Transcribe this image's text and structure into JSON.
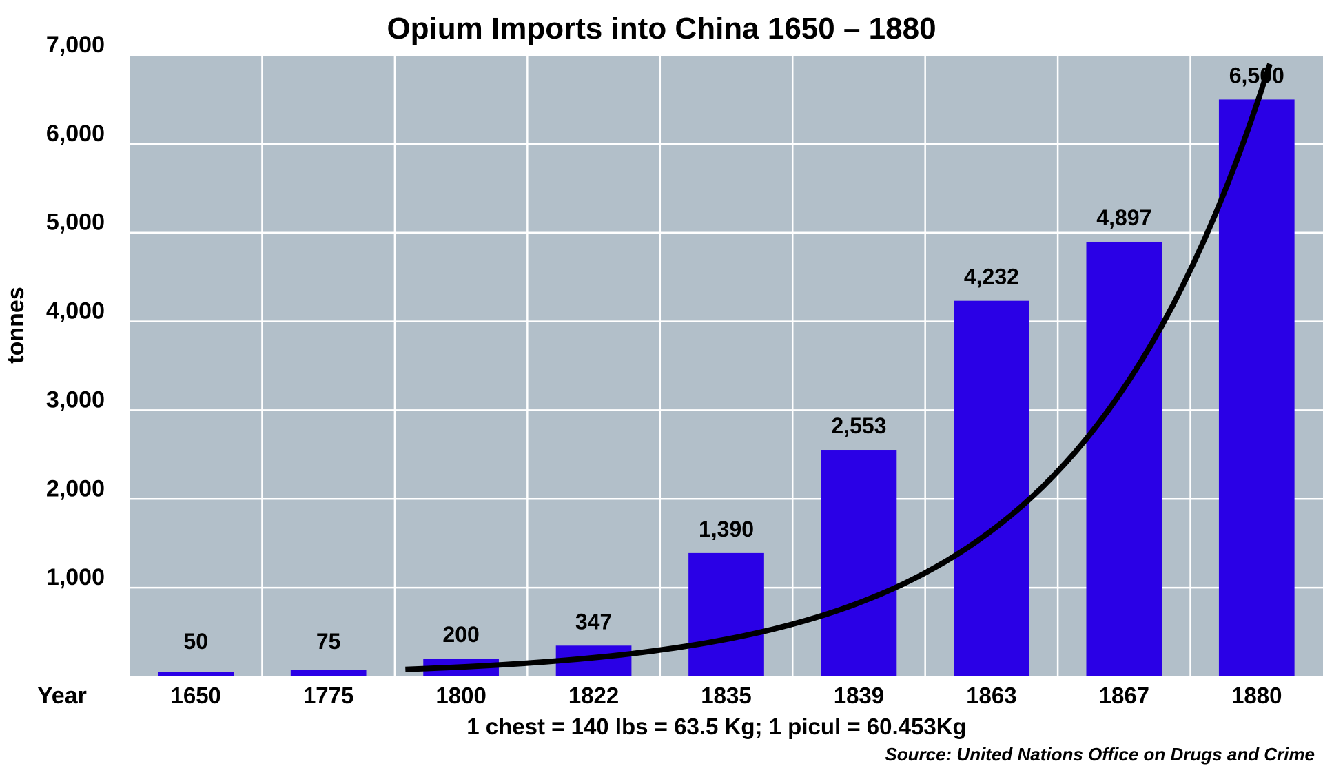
{
  "chart_data": {
    "type": "bar",
    "title": "Opium Imports into China 1650 – 1880",
    "ylabel": "tonnes",
    "xlabel": "Year",
    "categories": [
      "1650",
      "1775",
      "1800",
      "1822",
      "1835",
      "1839",
      "1863",
      "1867",
      "1880"
    ],
    "series": [
      {
        "values": [
          50,
          75,
          200,
          347,
          1390,
          2553,
          4232,
          4897,
          6500
        ],
        "data_labels": [
          "50",
          "75",
          "200",
          "347",
          "1,390",
          "2,553",
          "4,232",
          "4,897",
          "6,500"
        ]
      }
    ],
    "ylim": [
      0,
      7000
    ],
    "yticks": [
      1000,
      2000,
      3000,
      4000,
      5000,
      6000,
      7000
    ],
    "ytick_labels": [
      "1,000",
      "2,000",
      "3,000",
      "4,000",
      "5,000",
      "6,000",
      "7,000"
    ],
    "grid": true,
    "trend_line": true,
    "note": "1 chest = 140 lbs = 63.5 Kg; 1 picul = 60.453Kg",
    "source": "Source: United Nations Office on Drugs and Crime",
    "colors": {
      "bar": "#2a00e6",
      "plot_background": "#b2bfc9",
      "gridline": "#ffffff",
      "trend_line": "#000000"
    }
  }
}
